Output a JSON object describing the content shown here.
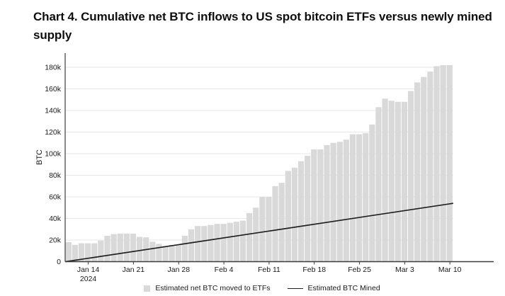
{
  "page": {
    "title": "Chart 4. Cumulative net BTC inflows to US spot bitcoin ETFs versus newly mined supply"
  },
  "colors": {
    "background": "#ffffff",
    "bar_fill": "#d9d9d9",
    "mined_line": "#1f1f1f",
    "gridline": "#e7e7e7",
    "axis": "#3c3c3c",
    "text": "#1a1a1a"
  },
  "chart_data": {
    "type": "bar",
    "title": "Chart 4. Cumulative net BTC inflows to US spot bitcoin ETFs versus newly mined supply",
    "xlabel": "",
    "ylabel": "BTC",
    "ylim": [
      0,
      180000
    ],
    "y_tick_step": 20000,
    "y_ticks": [
      "0",
      "20k",
      "40k",
      "60k",
      "80k",
      "100k",
      "120k",
      "140k",
      "160k",
      "180k"
    ],
    "grid": "horizontal",
    "legend_position": "bottom",
    "x_ticks": [
      {
        "label": "Jan 14",
        "sublabel": "2024",
        "day_index": 3
      },
      {
        "label": "Jan 21",
        "day_index": 10
      },
      {
        "label": "Jan 28",
        "day_index": 17
      },
      {
        "label": "Feb 4",
        "day_index": 24
      },
      {
        "label": "Feb 11",
        "day_index": 31
      },
      {
        "label": "Feb 18",
        "day_index": 38
      },
      {
        "label": "Feb 25",
        "day_index": 45
      },
      {
        "label": "Mar 3",
        "day_index": 52
      },
      {
        "label": "Mar 10",
        "day_index": 59
      }
    ],
    "categories": [
      "Jan 11",
      "Jan 12",
      "Jan 13",
      "Jan 14",
      "Jan 15",
      "Jan 16",
      "Jan 17",
      "Jan 18",
      "Jan 19",
      "Jan 20",
      "Jan 21",
      "Jan 22",
      "Jan 23",
      "Jan 24",
      "Jan 25",
      "Jan 26",
      "Jan 27",
      "Jan 28",
      "Jan 29",
      "Jan 30",
      "Jan 31",
      "Feb 1",
      "Feb 2",
      "Feb 3",
      "Feb 4",
      "Feb 5",
      "Feb 6",
      "Feb 7",
      "Feb 8",
      "Feb 9",
      "Feb 10",
      "Feb 11",
      "Feb 12",
      "Feb 13",
      "Feb 14",
      "Feb 15",
      "Feb 16",
      "Feb 17",
      "Feb 18",
      "Feb 19",
      "Feb 20",
      "Feb 21",
      "Feb 22",
      "Feb 23",
      "Feb 24",
      "Feb 25",
      "Feb 26",
      "Feb 27",
      "Feb 28",
      "Feb 29",
      "Mar 1",
      "Mar 2",
      "Mar 3",
      "Mar 4",
      "Mar 5",
      "Mar 6",
      "Mar 7",
      "Mar 8",
      "Mar 9",
      "Mar 10"
    ],
    "series": [
      {
        "name": "Estimated net BTC moved to ETFs",
        "type": "bar",
        "color": "#d9d9d9",
        "unit": "BTC",
        "values": [
          18000,
          15500,
          17000,
          17000,
          17000,
          19500,
          24000,
          25500,
          26000,
          26000,
          26000,
          23000,
          22500,
          18500,
          16500,
          14500,
          15500,
          15500,
          24000,
          30000,
          33000,
          33000,
          34000,
          35000,
          35000,
          36000,
          37000,
          38000,
          45000,
          50000,
          60000,
          60000,
          70000,
          73000,
          84000,
          87000,
          93000,
          98000,
          104000,
          104000,
          108000,
          110000,
          111000,
          113000,
          118000,
          118000,
          119000,
          127000,
          143000,
          151000,
          149000,
          148000,
          148000,
          158000,
          166000,
          171000,
          176000,
          181000,
          182000,
          182000
        ]
      },
      {
        "name": "Estimated BTC Mined",
        "type": "line",
        "color": "#1f1f1f",
        "unit": "BTC",
        "start_value": 0,
        "end_value": 54000
      }
    ]
  }
}
